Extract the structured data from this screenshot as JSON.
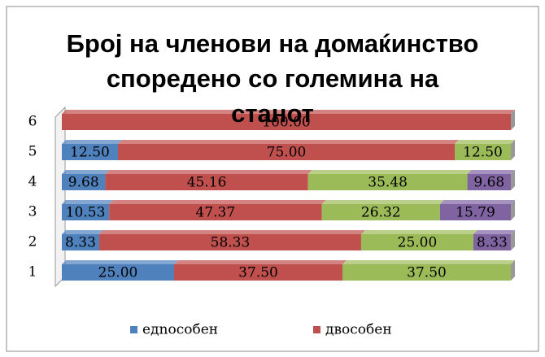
{
  "chart_data": {
    "type": "stacked-bar-horizontal",
    "title": "Број на членови на домаќинство споредено со големина на станот",
    "categories": [
      "1",
      "2",
      "3",
      "4",
      "5",
      "6"
    ],
    "xlim": [
      0,
      100
    ],
    "series": [
      {
        "name": "едnoсобен",
        "color": "#4f81bd",
        "values": [
          25,
          8.33,
          10.53,
          9.68,
          12.5,
          null
        ],
        "value_labels": [
          "25.00",
          "8.33",
          "10.53",
          "9.68",
          "12.50",
          null
        ]
      },
      {
        "name": "двособен",
        "color": "#c0504d",
        "values": [
          37.5,
          58.33,
          47.37,
          45.16,
          75,
          100
        ],
        "value_labels": [
          "37.50",
          "58.33",
          "47.37",
          "45.16",
          "75.00",
          "100.00"
        ]
      },
      {
        "color": "#9bbb59",
        "values": [
          37.5,
          25,
          26.32,
          35.48,
          12.5,
          null
        ],
        "value_labels": [
          "37.50",
          "25.00",
          "26.32",
          "35.48",
          "12.50",
          null
        ]
      },
      {
        "color": "#8064a2",
        "values": [
          null,
          8.33,
          15.79,
          9.68,
          null,
          null
        ],
        "value_labels": [
          null,
          "8.33",
          "15.79",
          "9.68",
          null,
          null
        ]
      }
    ],
    "legend": "bottom"
  }
}
